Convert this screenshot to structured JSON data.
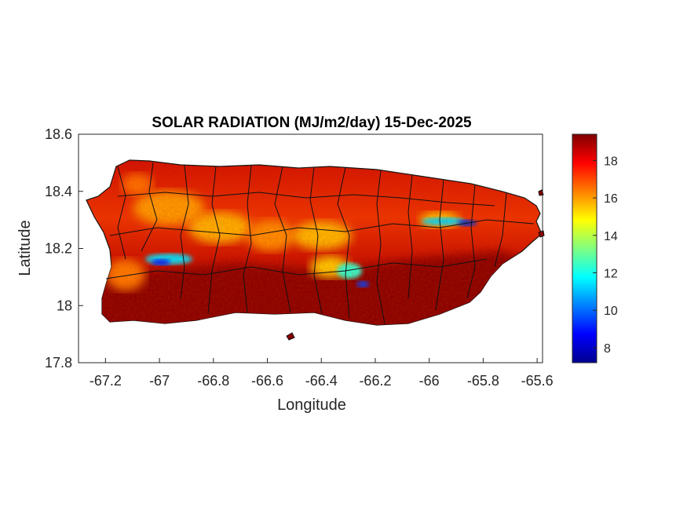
{
  "chart_data": {
    "type": "heatmap",
    "title": "SOLAR RADIATION (MJ/m2/day) 15-Dec-2025",
    "xlabel": "Longitude",
    "ylabel": "Latitude",
    "xlim": [
      -67.3,
      -65.58
    ],
    "ylim": [
      17.8,
      18.6
    ],
    "xticks": [
      -67.2,
      -67,
      -66.8,
      -66.6,
      -66.4,
      -66.2,
      -66,
      -65.8,
      -65.6
    ],
    "yticks": [
      17.8,
      18,
      18.2,
      18.4,
      18.6
    ],
    "xtick_labels": [
      "-67.2",
      "-67",
      "-66.8",
      "-66.6",
      "-66.4",
      "-66.2",
      "-66",
      "-65.8",
      "-65.6"
    ],
    "ytick_labels": [
      "17.8",
      "18",
      "18.2",
      "18.4",
      "18.6"
    ],
    "colorbar": {
      "colormap": "jet",
      "clim": [
        7.2,
        19.4
      ],
      "ticks": [
        8,
        10,
        12,
        14,
        16,
        18
      ],
      "tick_labels": [
        "8",
        "10",
        "12",
        "14",
        "16",
        "18"
      ]
    },
    "grid": false,
    "legend": "none",
    "value_range": [
      7.2,
      19.4
    ]
  }
}
